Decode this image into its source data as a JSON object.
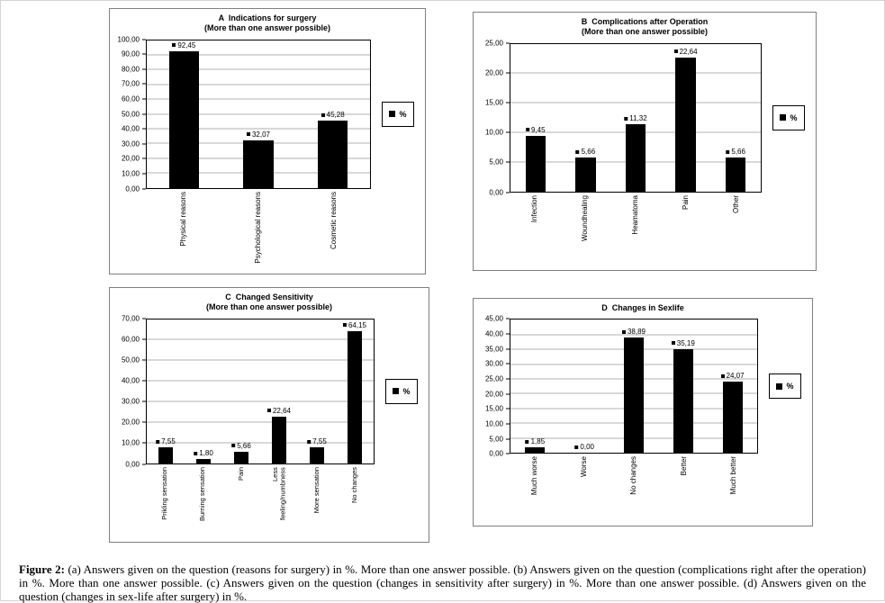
{
  "page": {
    "caption": {
      "label": "Figure 2:",
      "text": "(a) Answers given on the question (reasons for surgery) in %. More than one answer possible. (b) Answers given on the question (complications right after the operation) in %. More than one answer possible. (c) Answers given on the question (changes in sensitivity after surgery) in %. More than one answer possible. (d) Answers given on the question (changes in sex-life after surgery) in %."
    }
  },
  "colors": {
    "bar": "#000000",
    "gridline": "#b0b0b0",
    "axis": "#000000"
  },
  "chart_data": [
    {
      "id": "A",
      "type": "bar",
      "title": "A  Indications for surgery",
      "subtitle": "(More than one answer possible)",
      "legend": "%",
      "legend_position": "right",
      "grid": true,
      "categories": [
        "Physical reasons",
        "Psychological reasons",
        "Cosmetic reasons"
      ],
      "values": [
        92.45,
        32.07,
        45.28
      ],
      "value_labels": [
        "92,45",
        "32,07",
        "45,28"
      ],
      "ylim": [
        0,
        100
      ],
      "yticks": [
        "100,00",
        "90,00",
        "80,00",
        "70,00",
        "60,00",
        "50,00",
        "40,00",
        "30,00",
        "20,00",
        "10,00",
        "0,00"
      ]
    },
    {
      "id": "B",
      "type": "bar",
      "title": "B  Complications after Operation",
      "subtitle": "(More than one answer possible)",
      "legend": "%",
      "legend_position": "right",
      "grid": true,
      "categories": [
        "Infection",
        "Woundhealing",
        "Heamatoma",
        "Pain",
        "Other"
      ],
      "values": [
        9.45,
        5.66,
        11.32,
        22.64,
        5.66
      ],
      "value_labels": [
        "9,45",
        "5,66",
        "11,32",
        "22,64",
        "5,66"
      ],
      "ylim": [
        0,
        25
      ],
      "yticks": [
        "25,00",
        "20,00",
        "15,00",
        "10,00",
        "5,00",
        "0,00"
      ]
    },
    {
      "id": "C",
      "type": "bar",
      "title": "C  Changed Sensitivity",
      "subtitle": "(More than one answer possible)",
      "legend": "%",
      "legend_position": "right",
      "grid": true,
      "categories": [
        "Prikling sensation",
        "Burning sensation",
        "Pain",
        "Less feeling/numbness",
        "More sensation",
        "No changes"
      ],
      "values": [
        7.55,
        1.8,
        5.66,
        22.64,
        7.55,
        64.15
      ],
      "value_labels": [
        "7,55",
        "1,80",
        "5,66",
        "22,64",
        "7,55",
        "64,15"
      ],
      "ylim": [
        0,
        70
      ],
      "yticks": [
        "70,00",
        "60,00",
        "50,00",
        "40,00",
        "30,00",
        "20,00",
        "10,00",
        "0,00"
      ]
    },
    {
      "id": "D",
      "type": "bar",
      "title": "D  Changes in Sexlife",
      "subtitle": "",
      "legend": "%",
      "legend_position": "right",
      "grid": true,
      "categories": [
        "Much worse",
        "Worse",
        "No changes",
        "Better",
        "Much better"
      ],
      "values": [
        1.85,
        0.0,
        38.89,
        35.19,
        24.07
      ],
      "value_labels": [
        "1,85",
        "0,00",
        "38,89",
        "35,19",
        "24,07"
      ],
      "ylim": [
        0,
        45
      ],
      "yticks": [
        "45,00",
        "40,00",
        "35,00",
        "30,00",
        "25,00",
        "20,00",
        "15,00",
        "10,00",
        "5,00",
        "0,00"
      ]
    }
  ]
}
